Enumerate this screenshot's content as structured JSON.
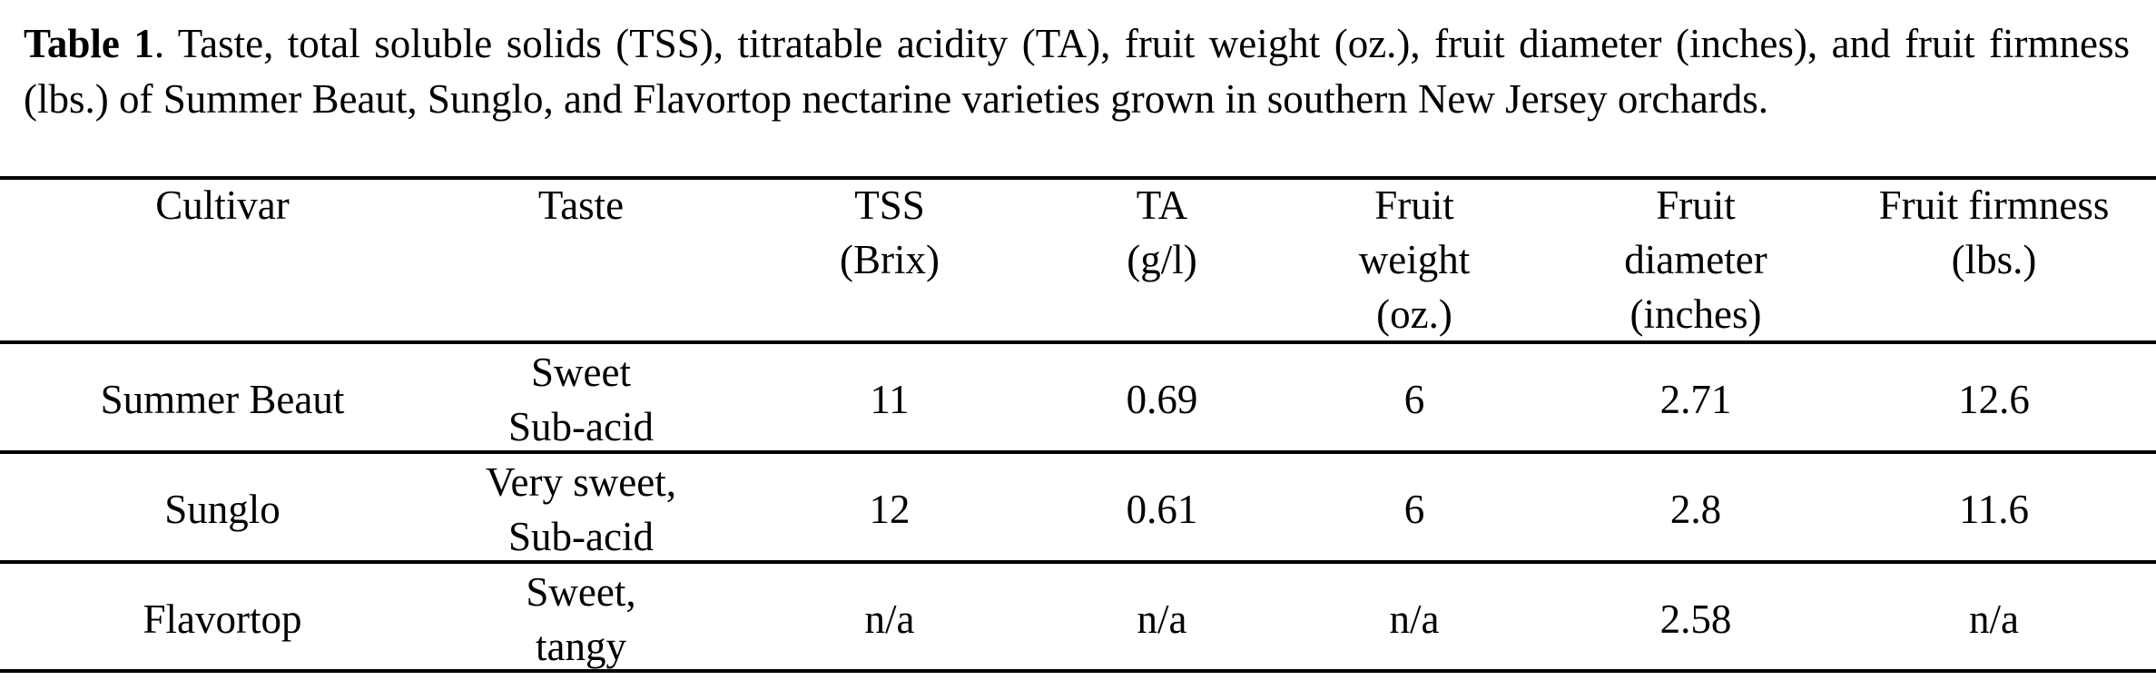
{
  "caption": {
    "label": "Table 1",
    "text": ". Taste, total soluble solids (TSS), titratable acidity (TA), fruit weight (oz.), fruit diameter (inches), and fruit firmness (lbs.) of Summer Beaut, Sunglo, and Flavortop nectarine varieties grown in southern New Jersey orchards."
  },
  "table": {
    "headers": [
      [
        "Cultivar"
      ],
      [
        "Taste"
      ],
      [
        "TSS",
        "(Brix)"
      ],
      [
        "TA",
        "(g/l)"
      ],
      [
        "Fruit",
        "weight",
        "(oz.)"
      ],
      [
        "Fruit",
        "diameter",
        "(inches)"
      ],
      [
        "Fruit firmness",
        "(lbs.)"
      ]
    ],
    "rows": [
      {
        "cultivar": "Summer Beaut",
        "taste": [
          "Sweet",
          "Sub-acid"
        ],
        "tss": "11",
        "ta": "0.69",
        "weight": "6",
        "diameter": "2.71",
        "firmness": "12.6"
      },
      {
        "cultivar": "Sunglo",
        "taste": [
          "Very sweet,",
          "Sub-acid"
        ],
        "tss": "12",
        "ta": "0.61",
        "weight": "6",
        "diameter": "2.8",
        "firmness": "11.6"
      },
      {
        "cultivar": "Flavortop",
        "taste": [
          "Sweet,",
          "tangy"
        ],
        "tss": "n/a",
        "ta": "n/a",
        "weight": "n/a",
        "diameter": "2.58",
        "firmness": "n/a"
      }
    ]
  }
}
